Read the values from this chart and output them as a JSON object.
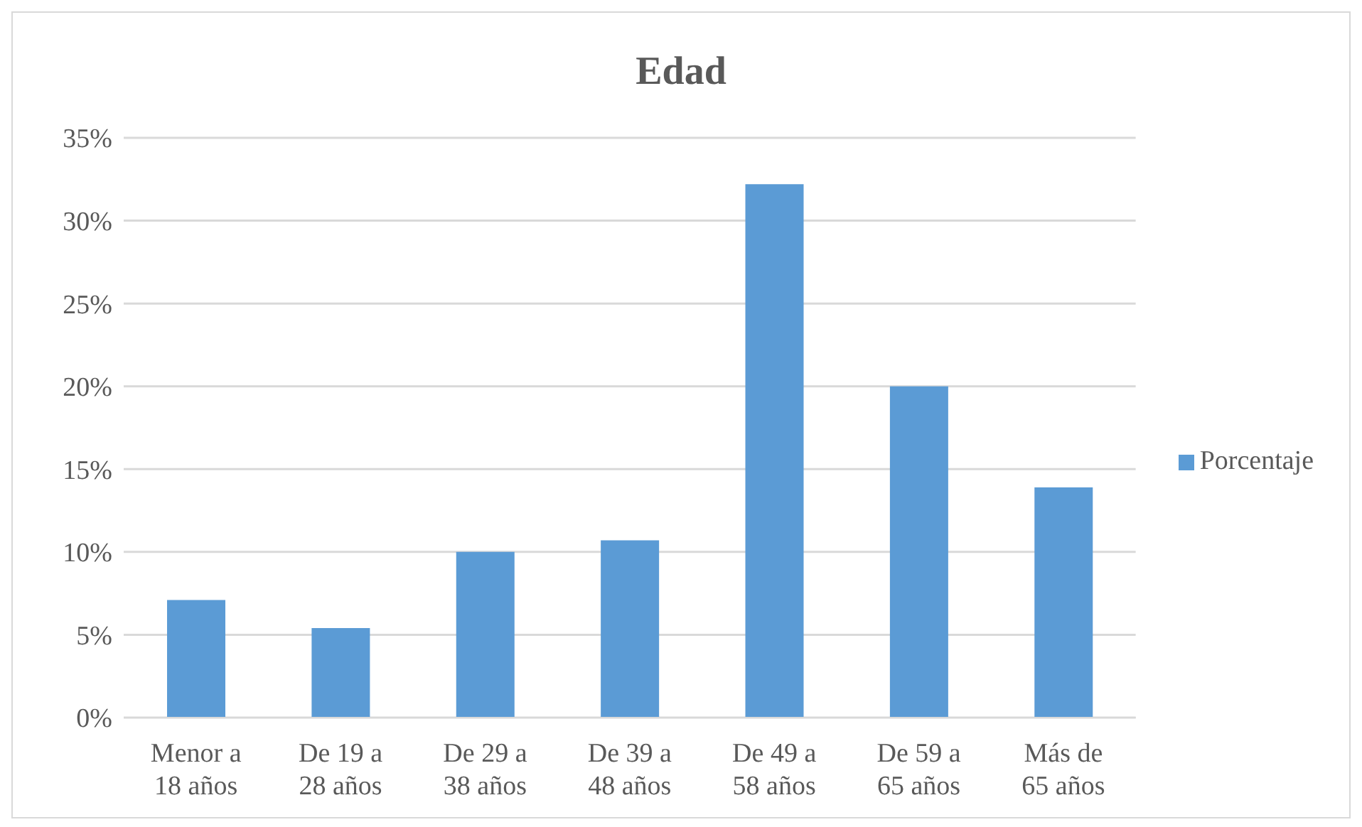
{
  "chart_data": {
    "type": "bar",
    "title": "Edad",
    "categories": [
      "Menor a 18 años",
      "De 19 a 28 años",
      "De 29 a 38 años",
      "De 39 a 48 años",
      "De 49 a 58 años",
      "De 59 a 65 años",
      "Más de 65 años"
    ],
    "series": [
      {
        "name": "Porcentaje",
        "color": "#5b9bd5",
        "values": [
          7.1,
          5.4,
          10.0,
          10.7,
          32.2,
          20.0,
          13.9
        ]
      }
    ],
    "ylim": [
      0,
      35
    ],
    "yticks": [
      {
        "value": 0,
        "label": "0%"
      },
      {
        "value": 5,
        "label": "5%"
      },
      {
        "value": 10,
        "label": "10%"
      },
      {
        "value": 15,
        "label": "15%"
      },
      {
        "value": 20,
        "label": "20%"
      },
      {
        "value": 25,
        "label": "25%"
      },
      {
        "value": 30,
        "label": "30%"
      },
      {
        "value": 35,
        "label": "35%"
      }
    ],
    "grid": "y",
    "legend": "right"
  }
}
